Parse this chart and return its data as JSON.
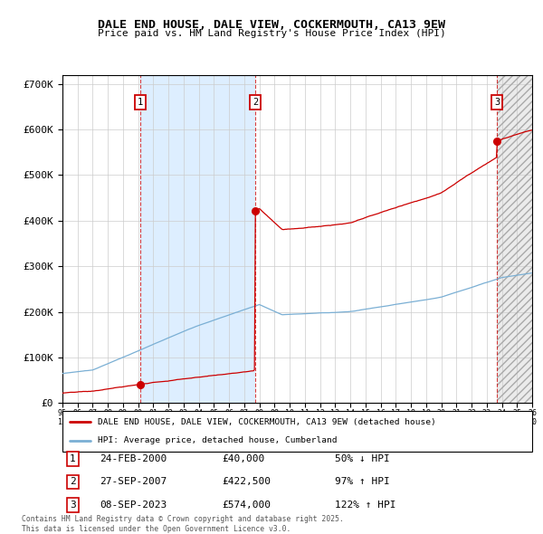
{
  "title": "DALE END HOUSE, DALE VIEW, COCKERMOUTH, CA13 9EW",
  "subtitle": "Price paid vs. HM Land Registry's House Price Index (HPI)",
  "legend_line1": "DALE END HOUSE, DALE VIEW, COCKERMOUTH, CA13 9EW (detached house)",
  "legend_line2": "HPI: Average price, detached house, Cumberland",
  "t1": 2000.14,
  "t2": 2007.74,
  "t3": 2023.69,
  "p1": 40000,
  "p2": 422500,
  "p3": 574000,
  "transactions": [
    {
      "num": "1",
      "date": "24-FEB-2000",
      "price": "£40,000",
      "hpi": "50% ↓ HPI"
    },
    {
      "num": "2",
      "date": "27-SEP-2007",
      "price": "£422,500",
      "hpi": "97% ↑ HPI"
    },
    {
      "num": "3",
      "date": "08-SEP-2023",
      "price": "£574,000",
      "hpi": "122% ↑ HPI"
    }
  ],
  "footer": "Contains HM Land Registry data © Crown copyright and database right 2025.\nThis data is licensed under the Open Government Licence v3.0.",
  "red_color": "#cc0000",
  "blue_color": "#7aafd4",
  "shade_color": "#ddeeff",
  "xlim": [
    1995,
    2026
  ],
  "ylim": [
    0,
    720000
  ],
  "yticks": [
    0,
    100000,
    200000,
    300000,
    400000,
    500000,
    600000,
    700000
  ],
  "ytick_labels": [
    "£0",
    "£100K",
    "£200K",
    "£300K",
    "£400K",
    "£500K",
    "£600K",
    "£700K"
  ],
  "fig_width": 6.0,
  "fig_height": 5.9
}
